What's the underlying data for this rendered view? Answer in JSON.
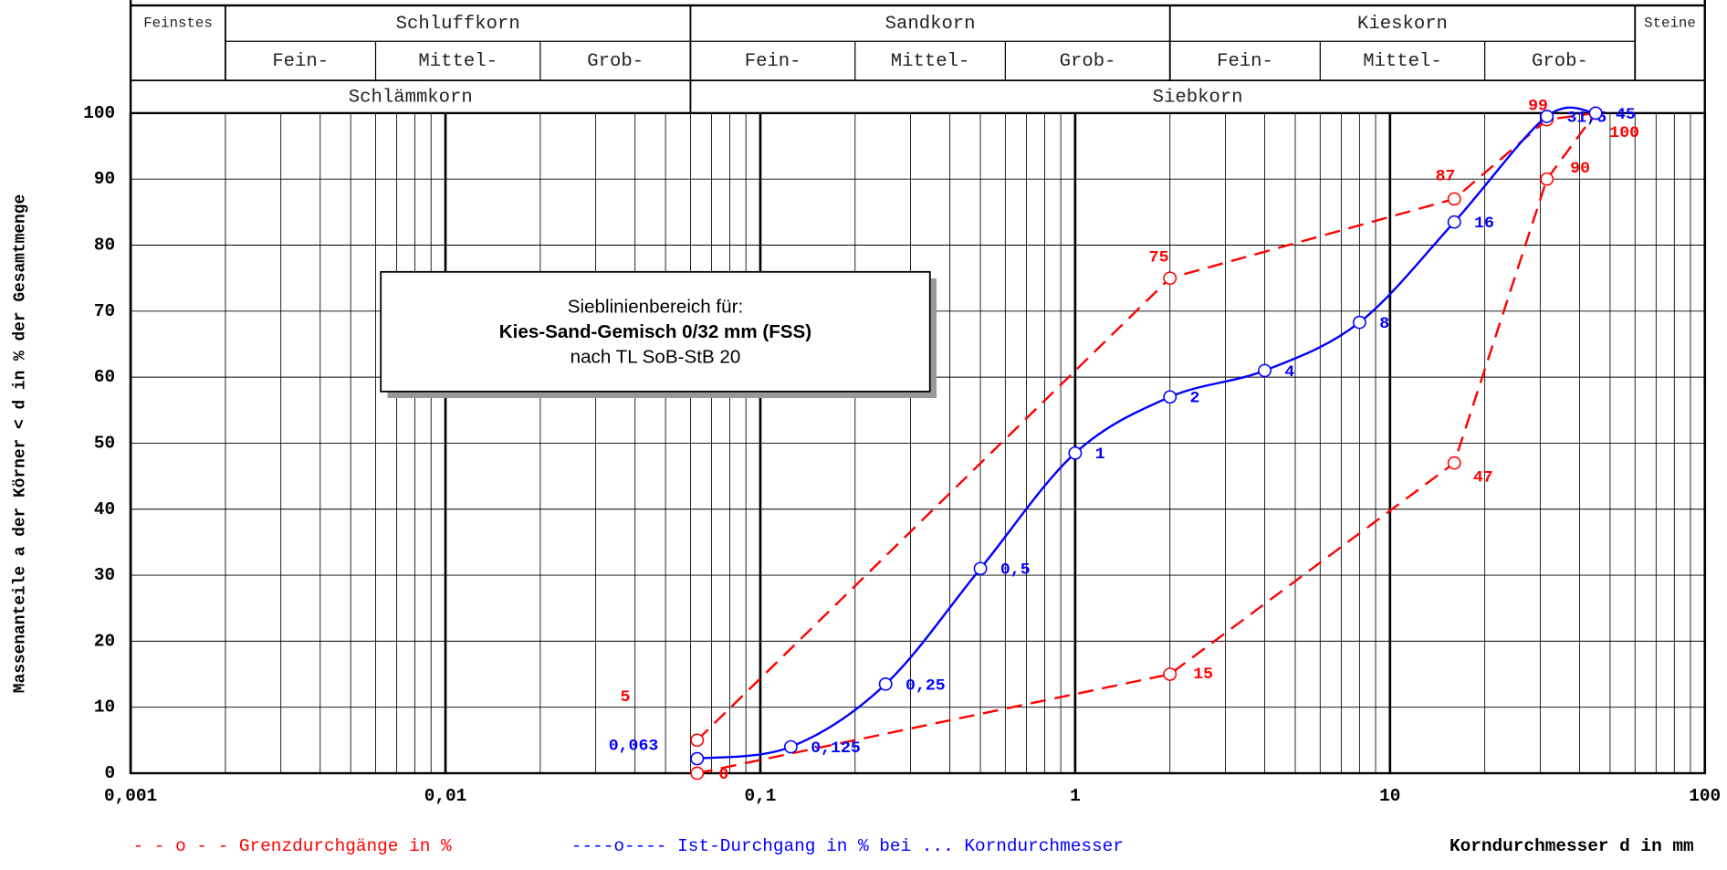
{
  "chart_data": {
    "type": "line",
    "header": {
      "classes": [
        "Feinstes",
        "Schluffkorn",
        "Sandkorn",
        "Kieskorn",
        "Steine"
      ],
      "subclasses": [
        "Fein-",
        "Mittel-",
        "Grob-",
        "Fein-",
        "Mittel-",
        "Grob-",
        "Fein-",
        "Mittel-",
        "Grob-"
      ],
      "groups": [
        "Schlämmkorn",
        "Siebkorn"
      ]
    },
    "annotation": [
      "Sieblinienbereich für:",
      "Kies-Sand-Gemisch 0/32 mm (FSS)",
      "nach TL SoB-StB 20"
    ],
    "ylabel": "Massenanteile a der Körner < d in % der Gesamtmenge",
    "xlabel": "Korndurchmesser d in mm",
    "legend": [
      "- - o - - Grenzdurchgänge in %",
      "----o---- Ist-Durchgang in % bei ... Korndurchmesser"
    ],
    "xscale": "log",
    "xlim": [
      0.001,
      100
    ],
    "xticks": [
      {
        "value": 0.001,
        "label": "0,001"
      },
      {
        "value": 0.01,
        "label": "0,01"
      },
      {
        "value": 0.1,
        "label": "0,1"
      },
      1,
      10,
      100
    ],
    "ylim": [
      0,
      100
    ],
    "yticks": [
      0,
      10,
      20,
      30,
      40,
      50,
      60,
      70,
      80,
      90,
      100
    ],
    "grid": true,
    "series": [
      {
        "name": "Grenzdurchgänge in %",
        "color": "#ff0000",
        "dash": true,
        "x": [
          0.063,
          2,
          16,
          31.5,
          45
        ],
        "values": [
          5,
          75,
          87,
          99,
          100
        ],
        "value_labels": [
          "5",
          "75",
          "87",
          "99",
          null
        ]
      },
      {
        "name": "Grenzdurchgänge in %",
        "color": "#ff0000",
        "dash": true,
        "x": [
          0.063,
          2,
          16,
          31.5,
          45
        ],
        "values": [
          0,
          15,
          47,
          90,
          100
        ],
        "value_labels": [
          "0",
          "15",
          "47",
          "90",
          "100"
        ]
      },
      {
        "name": "Ist-Durchgang in %",
        "color": "#0000ff",
        "dash": false,
        "smooth": true,
        "x": [
          0.063,
          0.125,
          0.25,
          0.5,
          1,
          2,
          4,
          8,
          16,
          31.5,
          45
        ],
        "values": [
          2.2,
          4,
          13.5,
          31,
          48.5,
          57,
          61,
          68.3,
          83.5,
          99.5,
          100
        ],
        "point_labels": [
          "0,063",
          "0,125",
          "0,25",
          "0,5",
          "1",
          "2",
          "4",
          "8",
          "16",
          "31,5",
          "45"
        ]
      }
    ]
  }
}
